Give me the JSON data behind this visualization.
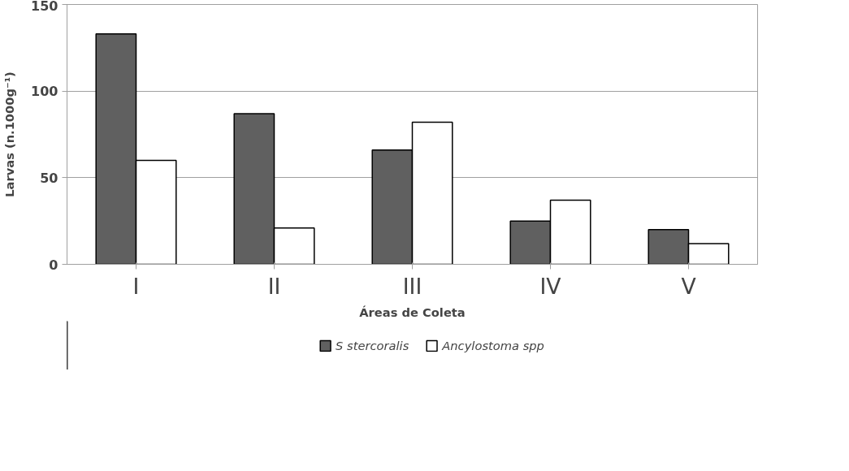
{
  "chart_data": {
    "type": "bar",
    "xlabel": "Áreas de Coleta",
    "ylabel": "Larvas (n.1000g⁻¹)",
    "categories": [
      "I",
      "II",
      "III",
      "IV",
      "V"
    ],
    "series": [
      {
        "name": "S stercoralis",
        "color": "#606060",
        "values": [
          133,
          87,
          66,
          25,
          20
        ]
      },
      {
        "name": "Ancylostoma spp",
        "color": "#ffffff",
        "values": [
          60,
          21,
          82,
          37,
          12
        ]
      }
    ],
    "ylim": [
      0,
      150
    ],
    "yticks": [
      0,
      50,
      100,
      150
    ],
    "grid": "y",
    "legend": "bottom"
  }
}
